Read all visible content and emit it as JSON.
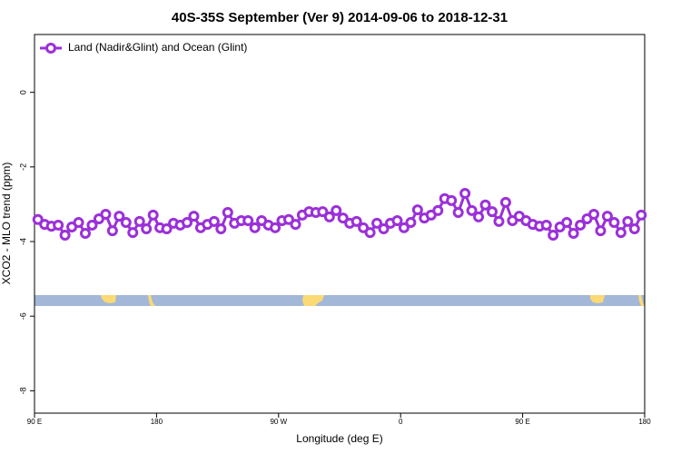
{
  "chart_data": {
    "type": "line",
    "title": "40S-35S September (Ver 9)   2014-09-06 to 2018-12-31",
    "x_label": "Longitude (deg E)",
    "y_label": "XCO2 - MLO trend (ppm)",
    "xlim": [
      90,
      540
    ],
    "xticks": [
      {
        "value": 90,
        "label": "90 E"
      },
      180,
      {
        "value": 270,
        "label": "90 W"
      },
      {
        "value": 360,
        "label": "0"
      },
      {
        "value": 450,
        "label": "90 E"
      },
      {
        "value": 540,
        "label": "180"
      }
    ],
    "ylim": [
      -8.6,
      1.55
    ],
    "yticks": [
      0,
      -2,
      -4,
      -6,
      -8
    ],
    "legend_position": "upper left",
    "x": [
      92.5,
      97.5,
      102.5,
      107.5,
      112.5,
      117.5,
      122.5,
      127.5,
      132.5,
      137.5,
      142.5,
      147.5,
      152.5,
      157.5,
      162.5,
      167.5,
      172.5,
      177.5,
      182.5,
      187.5,
      192.5,
      197.5,
      202.5,
      207.5,
      212.5,
      217.5,
      222.5,
      227.5,
      232.5,
      237.5,
      242.5,
      247.5,
      252.5,
      257.5,
      262.5,
      267.5,
      272.5,
      277.5,
      282.5,
      287.5,
      292.5,
      297.5,
      302.5,
      307.5,
      312.5,
      317.5,
      322.5,
      327.5,
      332.5,
      337.5,
      342.5,
      347.5,
      352.5,
      357.5,
      362.5,
      367.5,
      372.5,
      377.5,
      382.5,
      387.5,
      392.5,
      397.5,
      402.5,
      407.5,
      412.5,
      417.5,
      422.5,
      427.5,
      432.5,
      437.5,
      442.5,
      447.5,
      452.5,
      457.5,
      462.5,
      467.5,
      472.5,
      477.5,
      482.5,
      487.5,
      492.5,
      497.5,
      502.5,
      507.5,
      512.5,
      517.5,
      522.5,
      527.5,
      532.5,
      537.5
    ],
    "series": [
      {
        "name": "Land (Nadir&Glint) and Ocean (Glint)",
        "color": "#9b30d9",
        "values": [
          -3.41,
          -3.54,
          -3.59,
          -3.56,
          -3.83,
          -3.61,
          -3.49,
          -3.78,
          -3.56,
          -3.39,
          -3.27,
          -3.71,
          -3.32,
          -3.49,
          -3.76,
          -3.46,
          -3.66,
          -3.29,
          -3.63,
          -3.66,
          -3.51,
          -3.56,
          -3.49,
          -3.32,
          -3.63,
          -3.54,
          -3.46,
          -3.66,
          -3.22,
          -3.51,
          -3.44,
          -3.44,
          -3.63,
          -3.44,
          -3.56,
          -3.63,
          -3.44,
          -3.41,
          -3.54,
          -3.29,
          -3.2,
          -3.22,
          -3.2,
          -3.34,
          -3.17,
          -3.37,
          -3.51,
          -3.46,
          -3.63,
          -3.76,
          -3.51,
          -3.66,
          -3.51,
          -3.44,
          -3.63,
          -3.49,
          -3.15,
          -3.37,
          -3.29,
          -3.17,
          -2.85,
          -2.9,
          -3.22,
          -2.71,
          -3.17,
          -3.34,
          -3.02,
          -3.2,
          -3.46,
          -2.95,
          -3.44,
          -3.32,
          -3.44,
          -3.54,
          -3.59,
          -3.56,
          -3.83,
          -3.61,
          -3.49,
          -3.78,
          -3.56,
          -3.39,
          -3.27,
          -3.71,
          -3.32,
          -3.49,
          -3.76,
          -3.46,
          -3.66,
          -3.29
        ]
      }
    ]
  }
}
